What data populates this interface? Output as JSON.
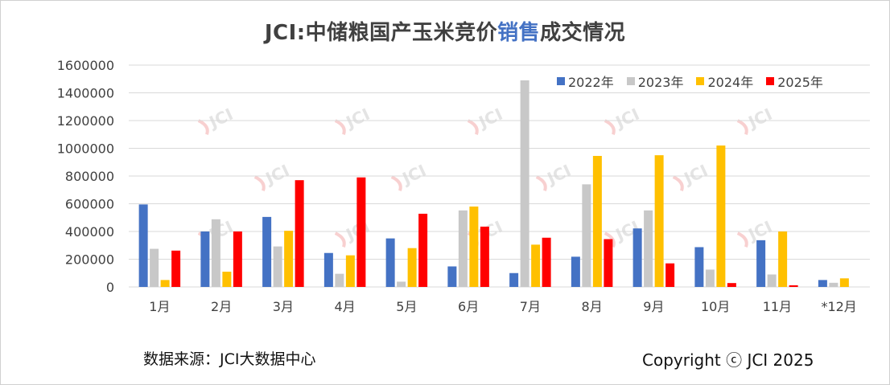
{
  "title_prefix": "JCI:中储粮国产玉米竞价",
  "title_highlight": "销售",
  "title_suffix": "成交情况",
  "source": "数据来源：JCI大数据中心",
  "copyright": "Copyright ⓒ JCI 2025",
  "watermark": "JCI",
  "chart_data": {
    "type": "bar",
    "categories": [
      "1月",
      "2月",
      "3月",
      "4月",
      "5月",
      "6月",
      "7月",
      "8月",
      "9月",
      "10月",
      "11月",
      "*12月"
    ],
    "ylim": [
      0,
      1600000
    ],
    "yticks": [
      0,
      200000,
      400000,
      600000,
      800000,
      1000000,
      1200000,
      1400000,
      1600000
    ],
    "grid": true,
    "legend_position": "top-right",
    "series": [
      {
        "name": "2022年",
        "color": "#4472C4",
        "values": [
          595000,
          400000,
          505000,
          245000,
          350000,
          148000,
          100000,
          218000,
          422000,
          287000,
          337000,
          50000
        ]
      },
      {
        "name": "2023年",
        "color": "#C8C8C8",
        "values": [
          275000,
          488000,
          292000,
          95000,
          38000,
          552000,
          1490000,
          740000,
          552000,
          125000,
          90000,
          30000
        ]
      },
      {
        "name": "2024年",
        "color": "#FFC000",
        "values": [
          50000,
          110000,
          405000,
          228000,
          280000,
          580000,
          305000,
          945000,
          950000,
          1020000,
          400000,
          62000
        ]
      },
      {
        "name": "2025年",
        "color": "#FF0000",
        "values": [
          262000,
          400000,
          770000,
          790000,
          528000,
          435000,
          355000,
          345000,
          170000,
          28000,
          12000,
          null
        ]
      }
    ]
  }
}
